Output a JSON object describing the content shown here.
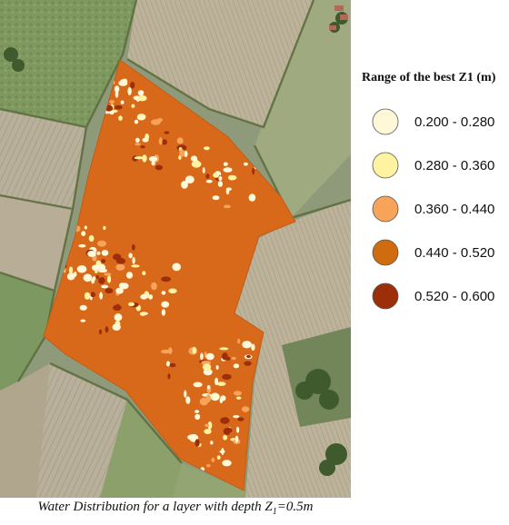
{
  "legend": {
    "title": "Range of the best Z1 (m)",
    "items": [
      {
        "label": "0.200 - 0.280",
        "color": "#fff8d8"
      },
      {
        "label": "0.280 - 0.360",
        "color": "#fff2a0"
      },
      {
        "label": "0.360 - 0.440",
        "color": "#f7a35a"
      },
      {
        "label": "0.440 - 0.520",
        "color": "#d06c10"
      },
      {
        "label": "0.520 - 0.600",
        "color": "#9c2f0a"
      }
    ]
  },
  "caption": {
    "prefix": "Water Distribution for a layer with depth Z",
    "subscript": "1",
    "suffix": "=0.5m"
  },
  "map": {
    "field_fill": "#d8681a",
    "hotspot_colors": [
      "#fff8d8",
      "#fff2a0",
      "#f7a35a",
      "#9c2f0a"
    ]
  }
}
